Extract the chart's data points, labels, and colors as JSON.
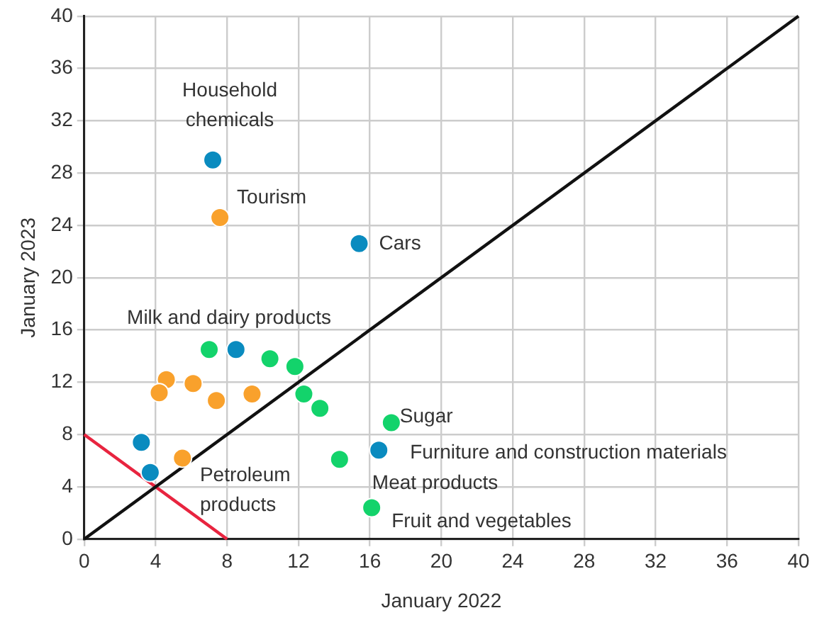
{
  "chart_data": {
    "type": "scatter",
    "xlabel": "January 2022",
    "ylabel": "January 2023",
    "xlim": [
      0,
      40
    ],
    "ylim": [
      0,
      40
    ],
    "xticks": [
      0,
      4,
      8,
      12,
      16,
      20,
      24,
      28,
      32,
      36,
      40
    ],
    "yticks": [
      0,
      4,
      8,
      12,
      16,
      20,
      24,
      28,
      32,
      36,
      40
    ],
    "grid": true,
    "legend": false,
    "marker": "circle",
    "series": [
      {
        "color": "#0a8bbf",
        "x": [
          7.2,
          15.4,
          8.5,
          3.2,
          3.7,
          16.5
        ],
        "values": [
          29.0,
          22.6,
          14.5,
          7.4,
          5.1,
          6.8
        ]
      },
      {
        "color": "#f9a12c",
        "x": [
          7.6,
          4.6,
          4.2,
          6.1,
          7.4,
          9.4,
          5.5
        ],
        "values": [
          24.6,
          12.2,
          11.2,
          11.9,
          10.6,
          11.1,
          6.2
        ]
      },
      {
        "color": "#13d36b",
        "x": [
          7.0,
          10.4,
          11.8,
          12.3,
          13.2,
          14.3,
          16.1,
          17.2
        ],
        "values": [
          14.5,
          13.8,
          13.2,
          11.1,
          10.0,
          6.1,
          2.4,
          8.9
        ]
      },
      {
        "type": "line",
        "color": "#111111",
        "x": [
          0,
          40
        ],
        "values": [
          0,
          40
        ],
        "marker": "none"
      },
      {
        "type": "line",
        "color": "#e8243f",
        "x": [
          0,
          8
        ],
        "values": [
          8,
          0
        ],
        "marker": "none"
      }
    ],
    "annotations": [
      {
        "text": "Household chemicals",
        "x": 7.2,
        "y": 29.0
      },
      {
        "text": "Tourism",
        "x": 7.6,
        "y": 24.6
      },
      {
        "text": "Cars",
        "x": 15.4,
        "y": 22.6
      },
      {
        "text": "Milk and dairy products",
        "x": 7.0,
        "y": 14.5
      },
      {
        "text": "Sugar",
        "x": 17.2,
        "y": 8.9
      },
      {
        "text": "Furniture and construction materials",
        "x": 16.5,
        "y": 6.8
      },
      {
        "text": "Meat products",
        "x": 14.3,
        "y": 6.1
      },
      {
        "text": "Fruit and vegetables",
        "x": 16.1,
        "y": 2.4
      },
      {
        "text": "Petroleum products",
        "x": 3.7,
        "y": 5.1
      }
    ]
  }
}
